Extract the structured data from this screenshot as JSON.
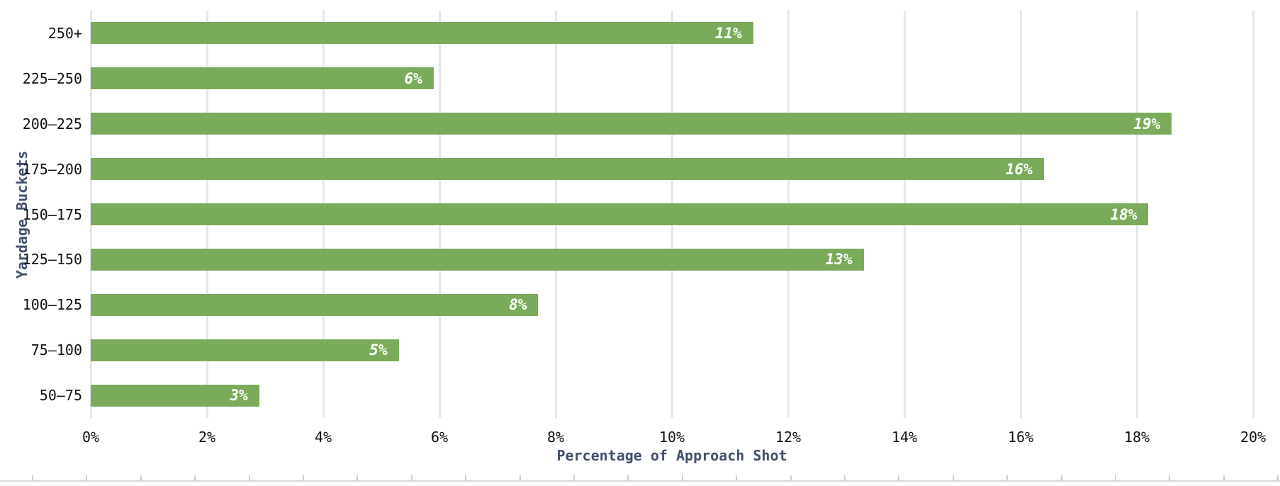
{
  "chart_data": {
    "type": "bar",
    "orientation": "horizontal",
    "title": "",
    "xlabel": "Percentage of Approach Shot",
    "ylabel": "Yardage Buckets",
    "categories": [
      "250+",
      "225–250",
      "200–225",
      "175–200",
      "150–175",
      "125–150",
      "100–125",
      "75–100",
      "50–75"
    ],
    "values": [
      11.4,
      5.9,
      18.6,
      16.4,
      18.2,
      13.3,
      7.7,
      5.3,
      2.9
    ],
    "bar_labels": [
      "11%",
      "6%",
      "19%",
      "16%",
      "18%",
      "13%",
      "8%",
      "5%",
      "3%"
    ],
    "xlim": [
      0,
      20
    ],
    "xtick_values": [
      0,
      2,
      4,
      6,
      8,
      10,
      12,
      14,
      16,
      18,
      20
    ],
    "xtick_labels": [
      "0%",
      "2%",
      "4%",
      "6%",
      "8%",
      "10%",
      "12%",
      "14%",
      "16%",
      "18%",
      "20%"
    ],
    "grid": true,
    "legend": false,
    "colors": {
      "bar": "#7aab5a",
      "grid": "#e4e7ec",
      "axis_title": "#40506a",
      "tick_label": "#111111",
      "bar_label": "#ffffff",
      "background": "#ffffff",
      "bottom_rule": "#d9dbe0"
    }
  }
}
